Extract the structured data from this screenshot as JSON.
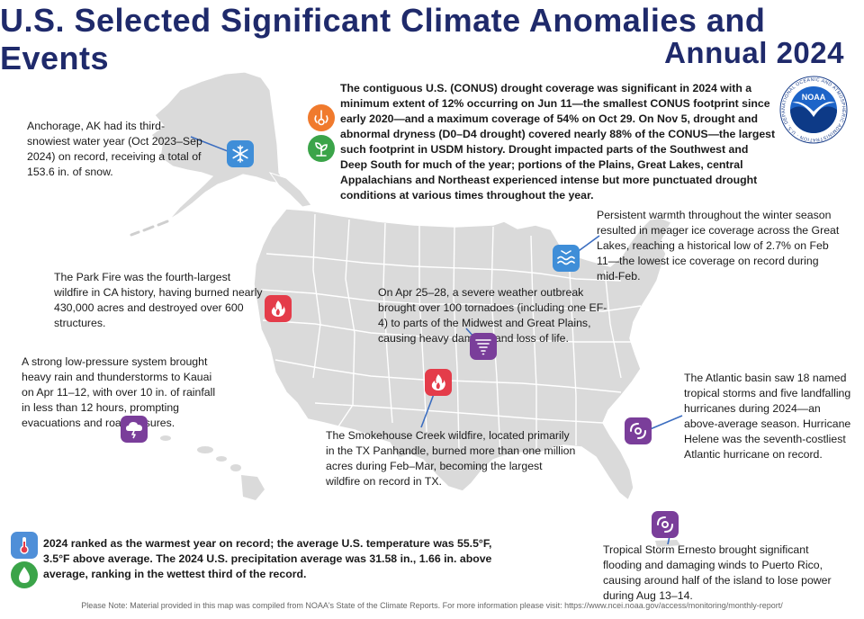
{
  "header": {
    "title_line1": "U.S. Selected Significant Climate Anomalies and Events",
    "title_line2": "Annual 2024"
  },
  "logo": {
    "name": "NOAA",
    "ring_text": "NATIONAL OCEANIC AND ATMOSPHERIC ADMINISTRATION · U.S. DEPARTMENT OF COMMERCE"
  },
  "colors": {
    "map_fill": "#dadada",
    "map_border": "#ffffff",
    "icon_purple": "#7a3e9a",
    "icon_red": "#e43c4a",
    "icon_blue": "#3f8ed8",
    "icon_orange": "#f07a2d",
    "icon_green": "#3ba449",
    "title": "#1f2a6b",
    "leader": "#3b6dc0"
  },
  "events": {
    "alaska": "Anchorage, AK had its third-snowiest water year (Oct 2023–Sep 2024) on record, receiving a total of 153.6 in. of snow.",
    "drought": "The contiguous U.S. (CONUS) drought coverage was significant in 2024 with a minimum extent of 12% occurring on Jun 11—the smallest CONUS footprint since early 2020—and a maximum coverage of 54% on Oct 29. On Nov 5, drought and abnormal dryness (D0–D4 drought) covered nearly 88% of the CONUS—the largest such footprint in USDM history. Drought impacted parts of the Southwest and Deep South for much of the year; portions of the Plains, Great Lakes, central  Appalachians and Northeast experienced intense but more punctuated drought conditions at various times throughout the year.",
    "great_lakes": "Persistent warmth throughout the winter season resulted in meager ice coverage across the Great Lakes, reaching a historical low of 2.7% on Feb 11—the lowest ice coverage on record during mid-Feb.",
    "park_fire": "The Park Fire was the fourth-largest wildfire in CA history, having burned nearly 430,000 acres and destroyed over 600 structures.",
    "tornado": "On Apr 25–28, a severe weather outbreak brought over 100 tornadoes (including one EF-4) to parts of the Midwest and Great Plains, causing heavy damage and loss of life.",
    "kauai": "A strong low-pressure system brought heavy rain and thunderstorms to Kauai on Apr 11–12, with over 10 in. of rainfall in less than 12 hours, prompting evacuations and road closures.",
    "atlantic": "The Atlantic basin saw 18 named tropical storms and five landfalling hurricanes during 2024—an above-average season. Hurricane Helene was the seventh-costliest Atlantic hurricane on record.",
    "smokehouse": "The Smokehouse Creek wildfire, located primarily in the TX Panhandle, burned more than one million acres during Feb–Mar, becoming the largest wildfire on record in TX.",
    "ernesto": "Tropical Storm Ernesto brought significant flooding and damaging winds to Puerto Rico, causing around half of the island to lose power during Aug 13–14.",
    "national": "2024 ranked as the warmest year on record; the average U.S. temperature was 55.5°F, 3.5°F above average. The 2024 U.S. precipitation average was 31.58 in., 1.66 in. above average, ranking in the wettest third of the record."
  },
  "icons": {
    "alaska": "snowflake-icon",
    "drought_temp": "dry-temperature-icon",
    "drought_plant": "drought-plant-icon",
    "great_lakes": "ice-water-icon",
    "park_fire": "wildfire-icon",
    "tornado": "tornado-icon",
    "kauai": "thunderstorm-icon",
    "smokehouse": "wildfire-icon",
    "atlantic": "hurricane-icon",
    "ernesto": "hurricane-icon",
    "temperature": "thermometer-icon",
    "precipitation": "raindrop-icon"
  },
  "footer": "Please Note: Material provided in this map was compiled from NOAA's State of the Climate Reports. For more information please visit: https://www.ncei.noaa.gov/access/monitoring/monthly-report/"
}
